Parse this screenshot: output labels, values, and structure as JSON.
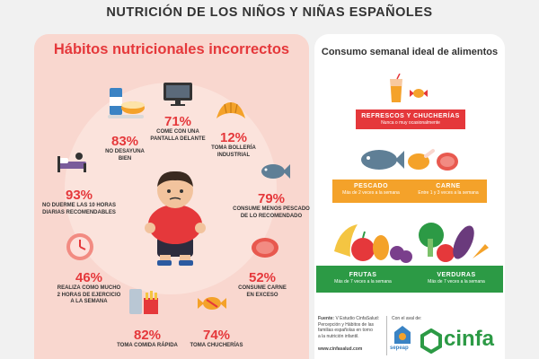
{
  "title": "NUTRICIÓN DE LOS NIÑOS Y NIÑAS ESPAÑOLES",
  "left": {
    "title": "Hábitos nutricionales incorrectos",
    "stats": [
      {
        "pct": "83%",
        "caption": [
          "NO DESAYUNA",
          "BIEN"
        ]
      },
      {
        "pct": "71%",
        "caption": [
          "COME CON UNA",
          "PANTALLA DELANTE"
        ]
      },
      {
        "pct": "12%",
        "caption": [
          "TOMA BOLLERÍA",
          "INDUSTRIAL"
        ]
      },
      {
        "pct": "93%",
        "caption": [
          "NO DUERME LAS 10 HORAS",
          "DIARIAS RECOMENDABLES"
        ]
      },
      {
        "pct": "79%",
        "caption": [
          "CONSUME MENOS PESCADO",
          "DE LO RECOMENDADO"
        ]
      },
      {
        "pct": "46%",
        "caption": [
          "REALIZA COMO MUCHO",
          "2 HORAS DE EJERCICIO",
          "A LA SEMANA"
        ]
      },
      {
        "pct": "52%",
        "caption": [
          "CONSUME CARNE",
          "EN EXCESO"
        ]
      },
      {
        "pct": "82%",
        "caption": [
          "TOMA COMIDA RÁPIDA"
        ]
      },
      {
        "pct": "74%",
        "caption": [
          "TOMA CHUCHERÍAS"
        ]
      }
    ]
  },
  "right": {
    "title": "Consumo semanal ideal de alimentos",
    "refrescos": {
      "title": "REFRESCOS Y CHUCHERÍAS",
      "sub": "Nunca o muy ocasionalmente"
    },
    "pescado": {
      "title": "PESCADO",
      "sub": "Más de 2 veces a la semana"
    },
    "carne": {
      "title": "CARNE",
      "sub": "Entre 1 y 3 veces a la semana"
    },
    "frutas": {
      "title": "FRUTAS",
      "sub": "Más de 7 veces a la semana"
    },
    "verduras": {
      "title": "VERDURAS",
      "sub": "Más de 7 veces a la semana"
    }
  },
  "footer": {
    "source_label": "Fuente:",
    "source": [
      "V Estudio CinfaSalud:",
      "Percepción y Hábitos de las",
      "familias españolas en torno",
      "a la nutrición infantil."
    ],
    "url": "www.cinfasalud.com",
    "aval": "Con el aval de:",
    "sepeap": "sepeap",
    "cinfa": "cinfa"
  },
  "colors": {
    "red": "#e5383b",
    "orange": "#f4a22a",
    "green": "#2c9a45",
    "pink": "#f9d7cf"
  }
}
